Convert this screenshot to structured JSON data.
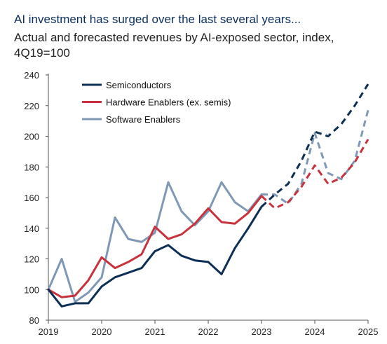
{
  "title": "AI investment has surged over the last several years...",
  "subtitle": "Actual and forecasted revenues by AI-exposed sector, index, 4Q19=100",
  "chart_data": {
    "type": "line",
    "title": "Actual and forecasted revenues by AI-exposed sector, index, 4Q19=100",
    "xlabel": "",
    "ylabel": "",
    "xlim": [
      2019,
      2025
    ],
    "ylim": [
      80,
      240
    ],
    "yticks": [
      80,
      100,
      120,
      140,
      160,
      180,
      200,
      220,
      240
    ],
    "xticks": [
      2019,
      2020,
      2021,
      2022,
      2023,
      2024,
      2025
    ],
    "forecast_start": 2023,
    "legend_position": "top-left",
    "grid": false,
    "x": [
      2019.0,
      2019.25,
      2019.5,
      2019.75,
      2020.0,
      2020.25,
      2020.5,
      2020.75,
      2021.0,
      2021.25,
      2021.5,
      2021.75,
      2022.0,
      2022.25,
      2022.5,
      2022.75,
      2023.0,
      2023.25,
      2023.5,
      2023.75,
      2024.0,
      2024.25,
      2024.5,
      2024.75,
      2025.0
    ],
    "series": [
      {
        "name": "Semiconductors",
        "color": "#0d2f55",
        "values": [
          100,
          89,
          91,
          91,
          102,
          108,
          111,
          114,
          125,
          129,
          122,
          119,
          118,
          110,
          127,
          140,
          154,
          162,
          169,
          184,
          203,
          200,
          208,
          220,
          234
        ]
      },
      {
        "name": "Hardware Enablers (ex. semis)",
        "color": "#c8323c",
        "values": [
          100,
          95,
          96,
          106,
          121,
          114,
          118,
          123,
          141,
          133,
          136,
          143,
          153,
          144,
          143,
          150,
          161,
          153,
          157,
          167,
          181,
          169,
          173,
          183,
          198
        ]
      },
      {
        "name": "Software Enablers",
        "color": "#7f98b5",
        "values": [
          100,
          120,
          92,
          98,
          108,
          147,
          133,
          131,
          137,
          170,
          151,
          142,
          151,
          170,
          157,
          151,
          162,
          162,
          156,
          169,
          202,
          176,
          172,
          184,
          217
        ]
      }
    ]
  }
}
